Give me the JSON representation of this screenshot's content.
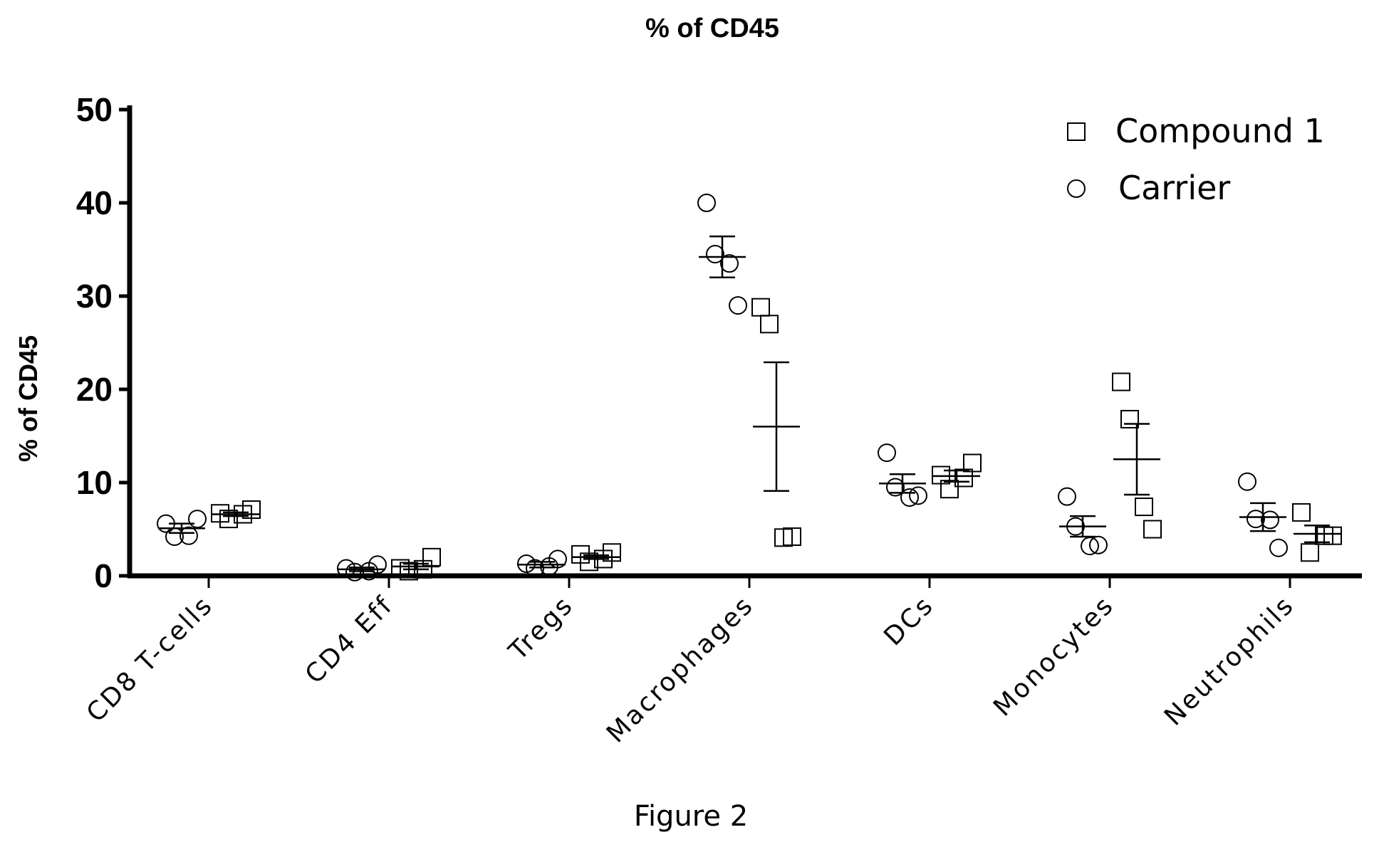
{
  "chart_data": {
    "type": "scatter",
    "title": "% of CD45",
    "ylabel": "% of CD45",
    "xlabel": "",
    "ylim": [
      0,
      50
    ],
    "yticks": [
      0,
      10,
      20,
      30,
      40,
      50
    ],
    "grid": false,
    "legend_position": "top-right",
    "categories": [
      "CD8 T-cells",
      "CD4 Eff",
      "Tregs",
      "Macrophages",
      "DCs",
      "Monocytes",
      "Neutrophils"
    ],
    "series": [
      {
        "name": "Carrier",
        "marker": "circle",
        "points": [
          [
            5.6,
            4.2,
            4.3,
            6.1
          ],
          [
            0.8,
            0.4,
            0.5,
            1.2
          ],
          [
            1.3,
            0.8,
            1.0,
            1.8
          ],
          [
            40.0,
            34.5,
            33.5,
            29.0
          ],
          [
            13.2,
            9.5,
            8.4,
            8.6
          ],
          [
            8.5,
            5.3,
            3.2,
            3.3
          ],
          [
            10.1,
            6.1,
            6.0,
            3.0
          ]
        ],
        "mean": [
          5.1,
          0.7,
          1.2,
          34.2,
          9.9,
          5.3,
          6.3
        ],
        "sem": [
          0.5,
          0.2,
          0.3,
          2.2,
          1.0,
          1.1,
          1.5
        ]
      },
      {
        "name": "Compound 1",
        "marker": "square",
        "points": [
          [
            6.7,
            6.1,
            6.6,
            7.1
          ],
          [
            0.8,
            0.5,
            0.7,
            2.0
          ],
          [
            2.3,
            1.5,
            1.8,
            2.5
          ],
          [
            28.8,
            27.0,
            4.1,
            4.2
          ],
          [
            10.8,
            9.3,
            10.5,
            12.1
          ],
          [
            20.8,
            16.8,
            7.4,
            5.0
          ],
          [
            6.8,
            2.5,
            4.3,
            4.3
          ]
        ],
        "mean": [
          6.6,
          1.0,
          2.0,
          16.0,
          10.7,
          12.5,
          4.5
        ],
        "sem": [
          0.2,
          0.3,
          0.2,
          6.9,
          0.6,
          3.8,
          0.9
        ]
      }
    ]
  },
  "caption": "Figure 2"
}
